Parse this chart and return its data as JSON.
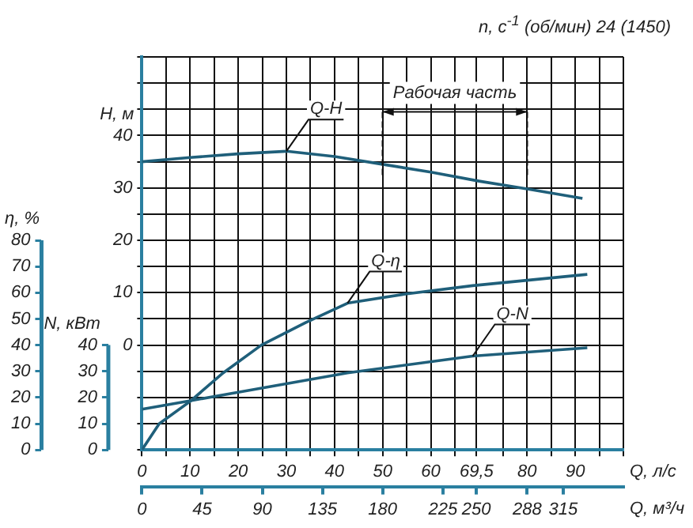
{
  "chart_data": {
    "type": "line",
    "subtitle": "n, с$^{-1}$ (об/мин) 24 (1450)",
    "xlabel": "Q, л/с",
    "x2label": "Q, м³/ч",
    "ylabel": "H, м",
    "y2label": "η, %",
    "y3label": "N, кВт",
    "xlim": [
      0,
      100
    ],
    "xticks": [
      0,
      {
        "value": 5,
        "label": null
      },
      10,
      {
        "value": 15,
        "label": null
      },
      20,
      {
        "value": 25,
        "label": null
      },
      30,
      {
        "value": 35,
        "label": null
      },
      40,
      {
        "value": 45,
        "label": null
      },
      50,
      {
        "value": 55,
        "label": null
      },
      60,
      {
        "value": 65,
        "label": null
      },
      {
        "value": 69.5,
        "label": "69,5"
      },
      {
        "value": 75,
        "label": null
      },
      80,
      {
        "value": 85,
        "label": null
      },
      90,
      {
        "value": 95,
        "label": null
      },
      {
        "value": 100,
        "label": null
      }
    ],
    "x2lim": [
      0,
      360
    ],
    "x2ticks": [
      0,
      45,
      90,
      135,
      180,
      225,
      250,
      288,
      315
    ],
    "ylim": [
      -20,
      55
    ],
    "yticks": [
      {
        "value": -20,
        "label": null
      },
      {
        "value": -15,
        "label": null
      },
      {
        "value": -10,
        "label": null
      },
      {
        "value": -5,
        "label": null
      },
      0,
      {
        "value": 5,
        "label": null
      },
      10,
      {
        "value": 15,
        "label": null
      },
      20,
      {
        "value": 25,
        "label": null
      },
      30,
      {
        "value": 35,
        "label": null
      },
      40,
      {
        "value": 45,
        "label": null
      },
      {
        "value": 50,
        "label": null
      },
      {
        "value": 55,
        "label": null
      }
    ],
    "y2lim": [
      0,
      150
    ],
    "y2ticks": [
      0,
      10,
      20,
      30,
      40,
      50,
      60,
      70,
      80
    ],
    "y3lim": [
      0,
      150
    ],
    "y3ticks": [
      0,
      10,
      20,
      30,
      40
    ],
    "grid": true,
    "legend": false,
    "marker": "none",
    "line_style": "solid",
    "ref_lines": [
      {
        "axis": "x",
        "value": 50,
        "line_style": "dashed"
      },
      {
        "axis": "x",
        "value": 80,
        "line_style": "dashed"
      }
    ],
    "annotations": [
      "Рабочая часть"
    ],
    "series": [
      {
        "name": "Q-H",
        "color": "#1f5f7a",
        "axis": "y",
        "x": [
          0,
          10,
          20,
          30,
          40,
          50,
          60,
          70,
          80,
          91.5
        ],
        "values": [
          35,
          35.8,
          36.5,
          37,
          36,
          34.5,
          33,
          31.3,
          29.8,
          28
        ]
      },
      {
        "name": "Q-η",
        "color": "#1f5f7a",
        "axis": "y2",
        "x": [
          0,
          3.6,
          10,
          16.6,
          24.8,
          34,
          42.7,
          54.7,
          68.7,
          92.5
        ],
        "values": [
          0,
          10,
          18.5,
          29,
          40,
          48.6,
          56,
          59.5,
          62.7,
          67
        ]
      },
      {
        "name": "Q-N",
        "color": "#1f5f7a",
        "axis": "y3",
        "x": [
          0,
          20,
          42.7,
          68.7,
          92.5
        ],
        "values": [
          15.5,
          22,
          29.4,
          35.8,
          39
        ]
      }
    ]
  }
}
